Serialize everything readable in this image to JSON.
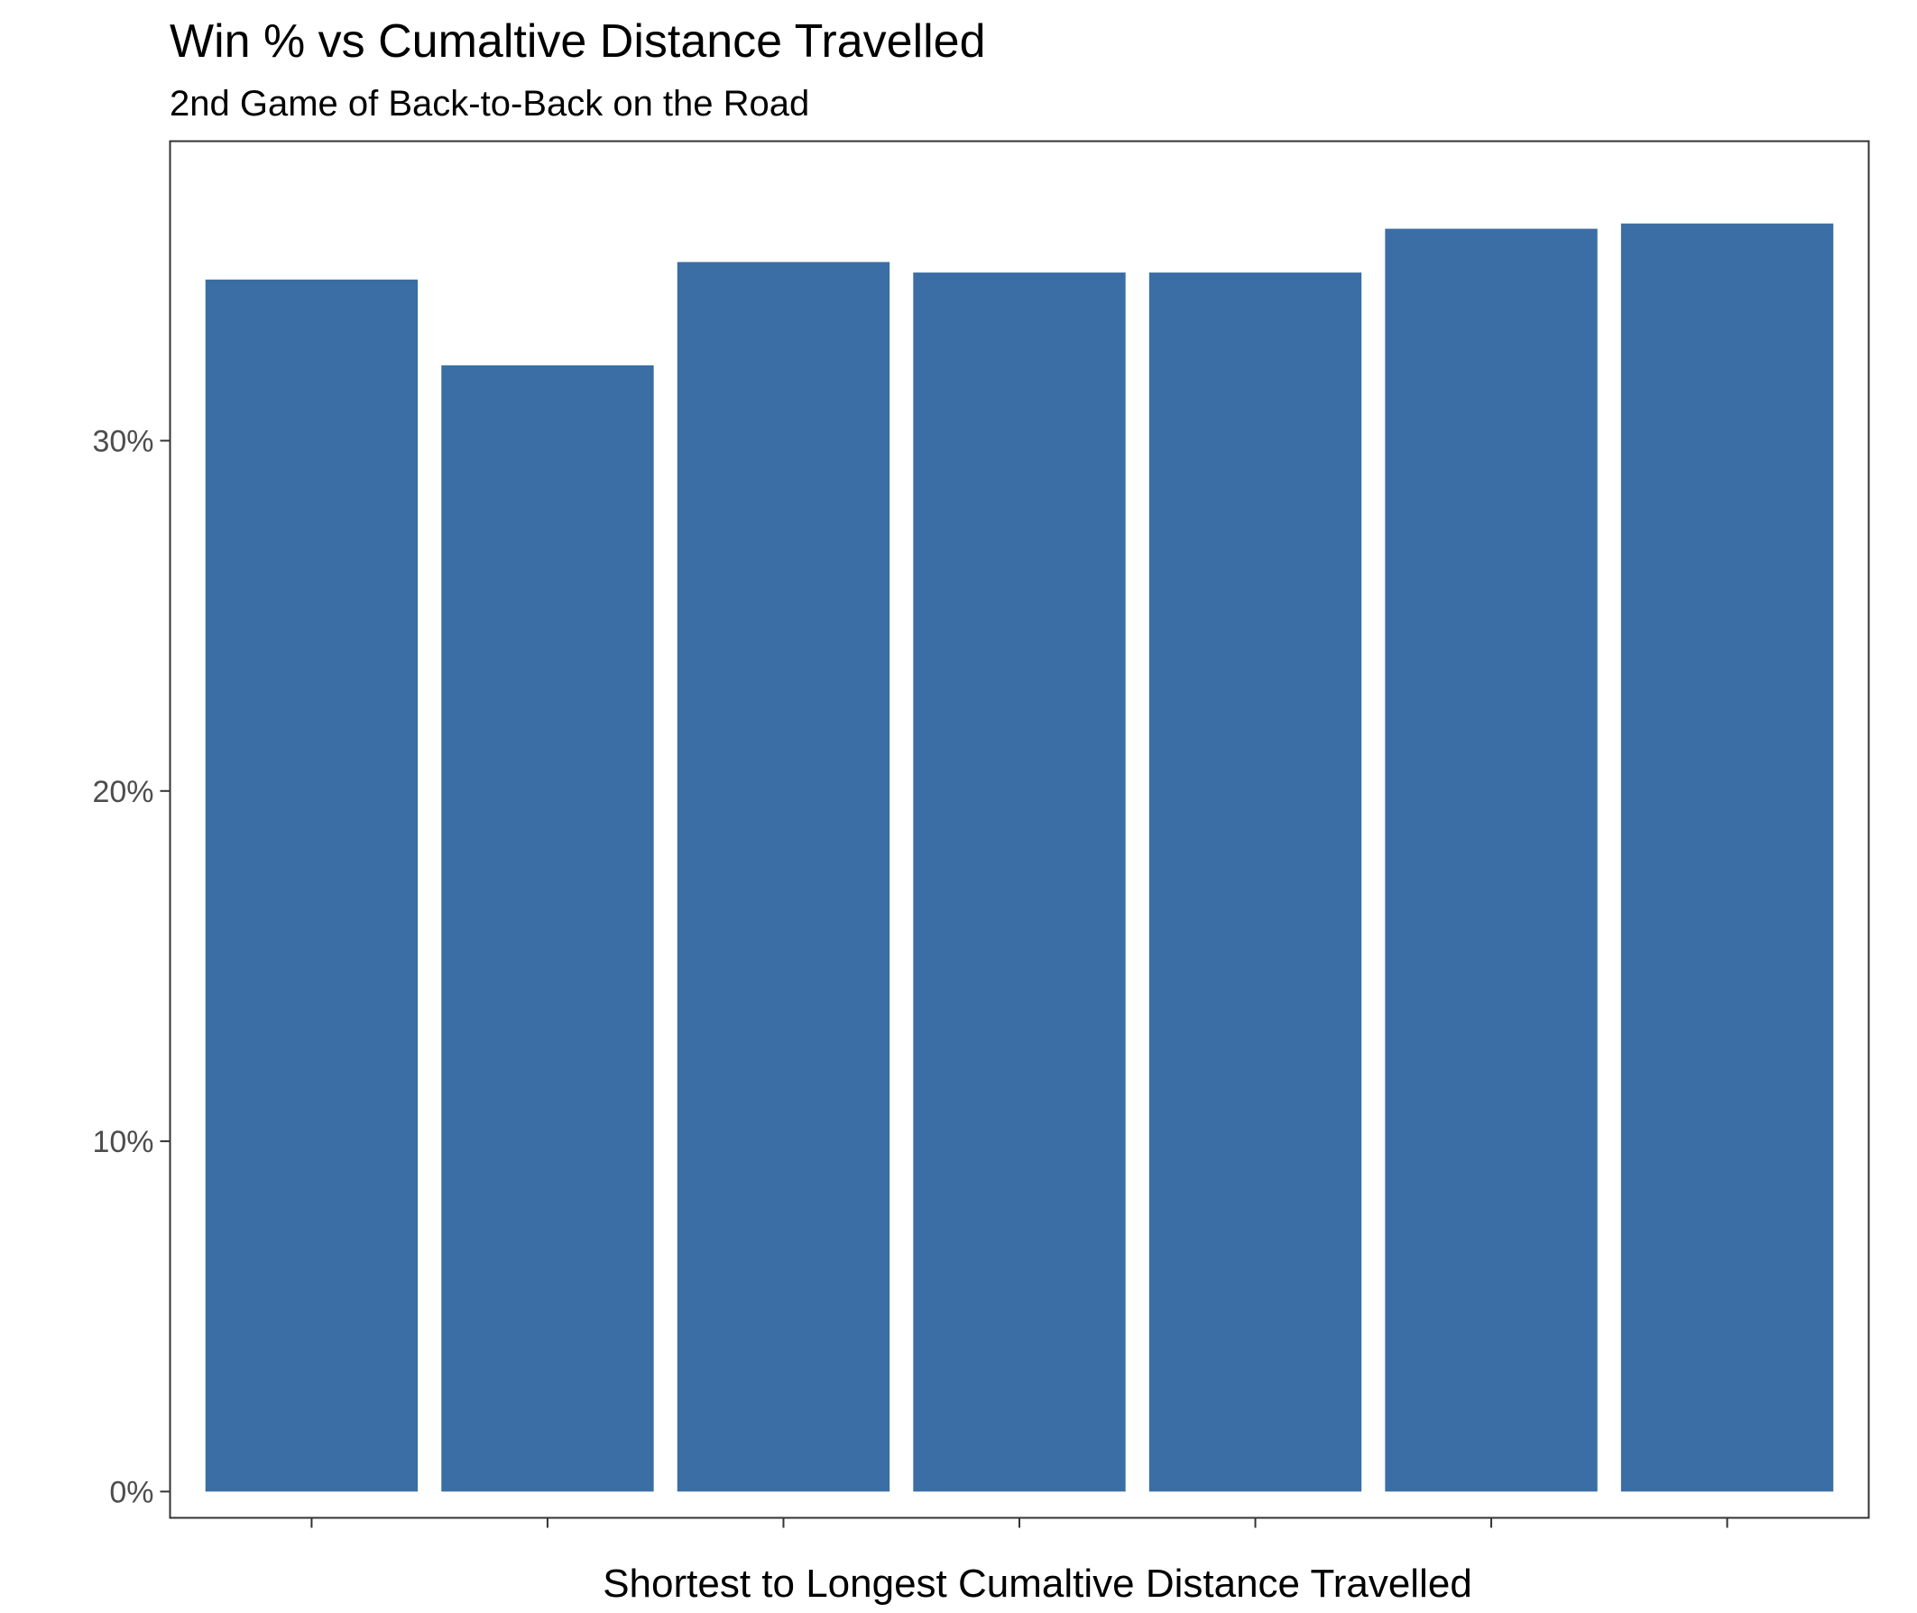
{
  "chart_data": {
    "type": "bar",
    "title": "Win % vs Cumaltive Distance Travelled",
    "subtitle": "2nd Game of Back-to-Back on the Road",
    "xlabel": "Shortest to Longest Cumaltive Distance Travelled",
    "ylabel": "",
    "categories": [
      "",
      "",
      "",
      "",
      "",
      "",
      ""
    ],
    "values": [
      0.346,
      0.3215,
      0.351,
      0.348,
      0.348,
      0.3605,
      0.362
    ],
    "ylim": [
      -0.0075,
      0.3855
    ],
    "yticks": [
      {
        "value": 0,
        "label": "0%"
      },
      {
        "value": 0.1,
        "label": "10%"
      },
      {
        "value": 0.2,
        "label": "20%"
      },
      {
        "value": 0.3,
        "label": "30%"
      }
    ],
    "grid": false,
    "bar_color": "#3A6EA5",
    "axis_text_color": "#4D4D4D",
    "panel_border_color": "#333333"
  }
}
